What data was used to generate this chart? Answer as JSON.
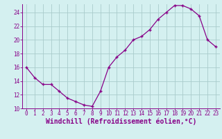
{
  "x": [
    0,
    1,
    2,
    3,
    4,
    5,
    6,
    7,
    8,
    9,
    10,
    11,
    12,
    13,
    14,
    15,
    16,
    17,
    18,
    19,
    20,
    21,
    22,
    23
  ],
  "y": [
    16,
    14.5,
    13.5,
    13.5,
    12.5,
    11.5,
    11.0,
    10.5,
    10.3,
    12.5,
    16.0,
    17.5,
    18.5,
    20.0,
    20.5,
    21.5,
    23.0,
    24.0,
    25.0,
    25.0,
    24.5,
    23.5,
    20.0,
    19.0
  ],
  "line_color": "#880088",
  "bg_color": "#d4f0f0",
  "grid_color": "#aacccc",
  "xlabel": "Windchill (Refroidissement éolien,°C)",
  "ylim": [
    10,
    25
  ],
  "xlim": [
    -0.5,
    23.5
  ],
  "yticks": [
    10,
    12,
    14,
    16,
    18,
    20,
    22,
    24
  ],
  "xticks": [
    0,
    1,
    2,
    3,
    4,
    5,
    6,
    7,
    8,
    9,
    10,
    11,
    12,
    13,
    14,
    15,
    16,
    17,
    18,
    19,
    20,
    21,
    22,
    23
  ],
  "font_color": "#880088",
  "tick_fontsize": 5.5,
  "xlabel_fontsize": 7
}
